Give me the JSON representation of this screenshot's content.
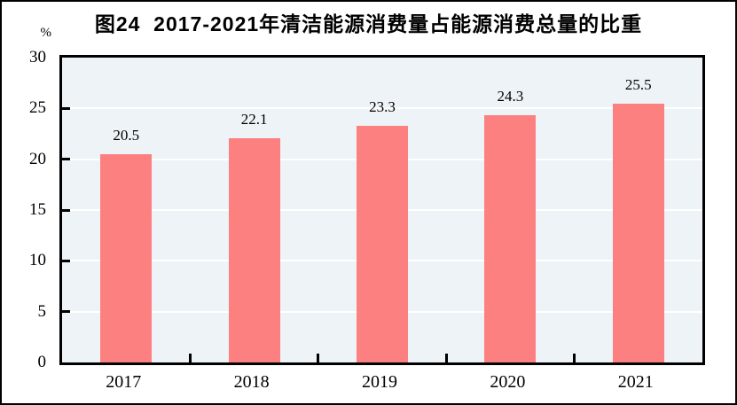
{
  "figure": {
    "title": "图24  2017-2021年清洁能源消费量占能源消费总量的比重",
    "unit_label": "%"
  },
  "chart_data": {
    "type": "bar",
    "title": "图24  2017-2021年清洁能源消费量占能源消费总量的比重",
    "unit": "%",
    "categories": [
      "2017",
      "2018",
      "2019",
      "2020",
      "2021"
    ],
    "values": [
      20.5,
      22.1,
      23.3,
      24.3,
      25.5
    ],
    "data_labels": [
      "20.5",
      "22.1",
      "23.3",
      "24.3",
      "25.5"
    ],
    "xlabel": "",
    "ylabel": "%",
    "ylim": [
      0,
      30
    ],
    "y_ticks": [
      0,
      5,
      10,
      15,
      20,
      25,
      30
    ],
    "grid": "horizontal",
    "legend_position": "none",
    "colors": {
      "bar": "#fc8080",
      "plot_background": "#edf3f6",
      "gridline": "#ffffff",
      "axis_frame": "#000000",
      "text": "#000000",
      "page_background": "#ffffff"
    }
  }
}
